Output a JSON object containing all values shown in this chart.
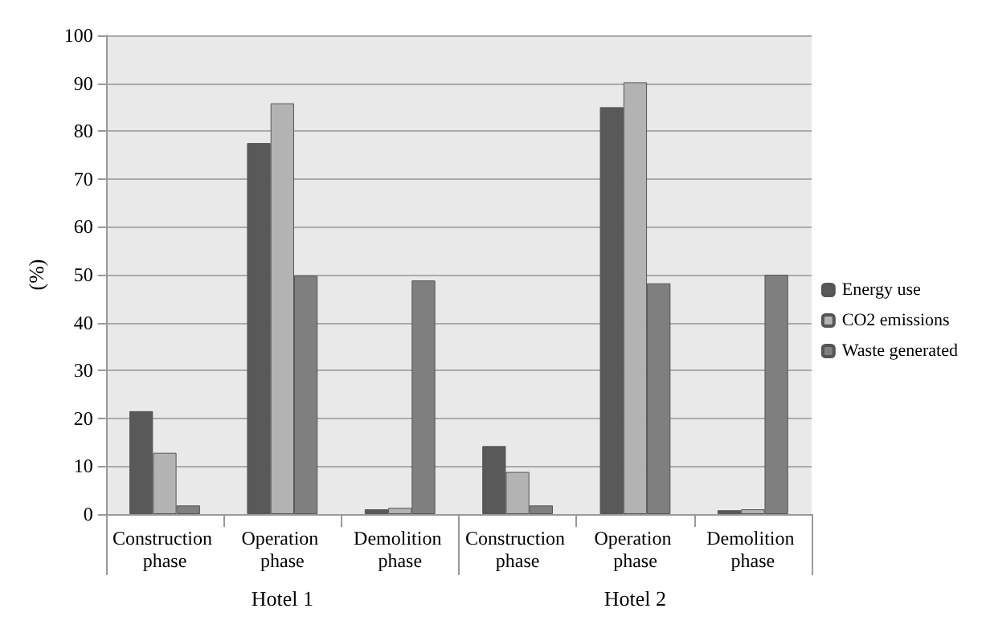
{
  "chart_data": {
    "type": "bar",
    "ylabel": "(%)",
    "categories": [
      "Construction phase",
      "Operation phase",
      "Demolition phase",
      "Construction phase",
      "Operation phase",
      "Demolition phase"
    ],
    "series": [
      {
        "name": "Energy use",
        "color": "#595959",
        "values": [
          21.5,
          77.5,
          1,
          14.2,
          85,
          0.8
        ]
      },
      {
        "name": "CO2 emissions",
        "color": "#b3b3b3",
        "values": [
          12.8,
          85.8,
          1.3,
          8.8,
          90.2,
          1
        ]
      },
      {
        "name": "Waste generated",
        "color": "#7f7f7f",
        "values": [
          1.8,
          49.8,
          48.8,
          1.8,
          48.2,
          50
        ]
      }
    ],
    "annotations": [
      "Hotel 1",
      "Hotel 2"
    ],
    "ylim": [
      0,
      100
    ],
    "yticks": [
      0,
      10,
      20,
      30,
      40,
      50,
      60,
      70,
      80,
      90,
      100
    ],
    "grid": "y",
    "legend": "right"
  }
}
